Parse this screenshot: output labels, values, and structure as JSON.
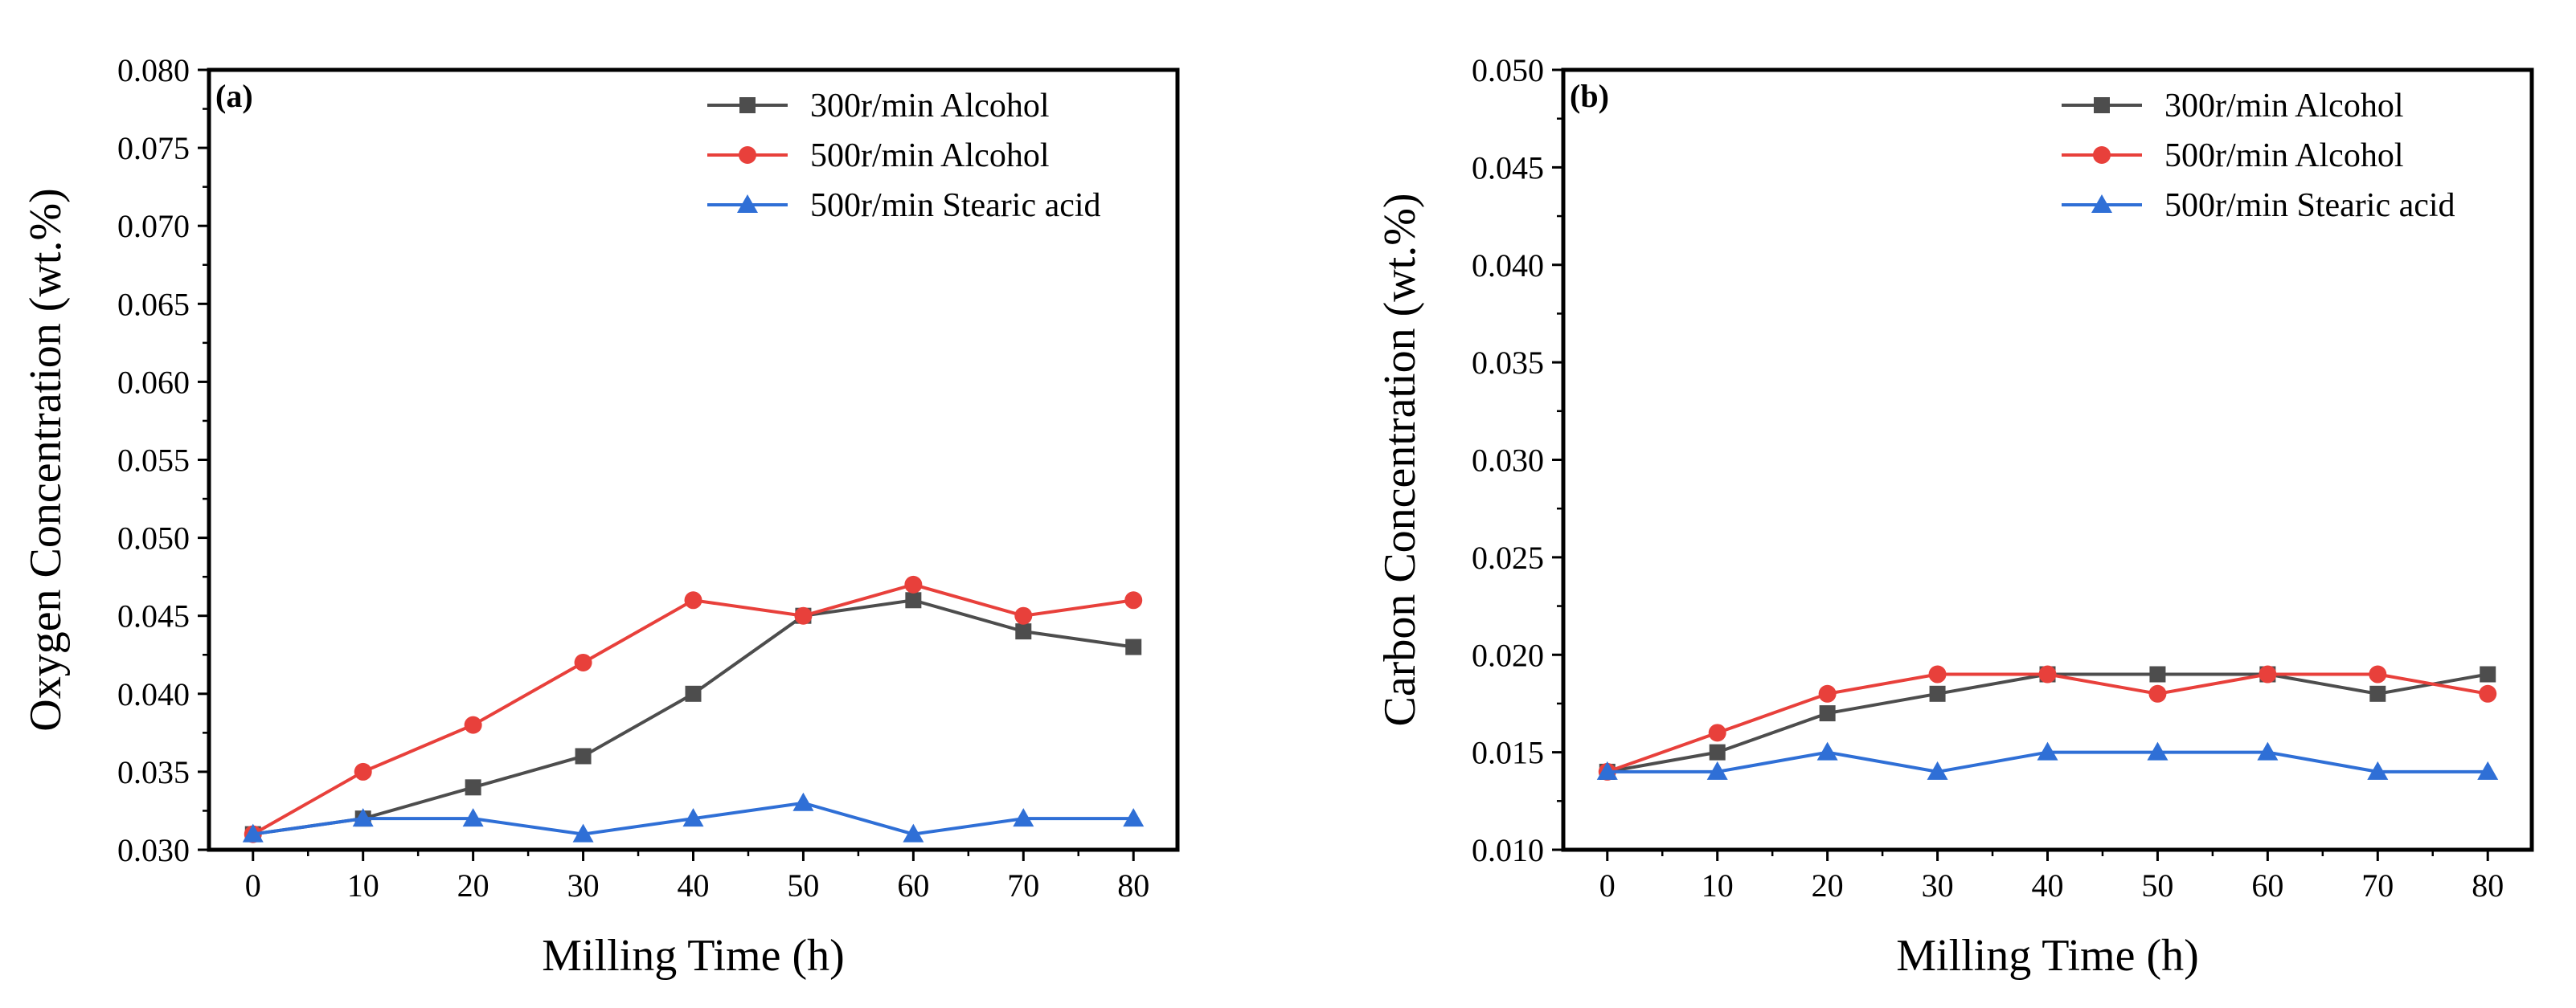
{
  "chart_data": [
    {
      "type": "line",
      "panel_label": "(a)",
      "xlabel": "Milling Time (h)",
      "ylabel": "Oxygen Concentration (wt.%)",
      "x": [
        0,
        10,
        20,
        30,
        40,
        50,
        60,
        70,
        80
      ],
      "xlim": [
        -4,
        84
      ],
      "ylim": [
        0.03,
        0.08
      ],
      "xticks": [
        "0",
        "10",
        "20",
        "30",
        "40",
        "50",
        "60",
        "70",
        "80"
      ],
      "yticks": [
        "0.030",
        "0.035",
        "0.040",
        "0.045",
        "0.050",
        "0.055",
        "0.060",
        "0.065",
        "0.070",
        "0.075",
        "0.080"
      ],
      "legend_position": "top-right",
      "series": [
        {
          "name": "300r/min Alcohol",
          "color": "#4d4d4d",
          "marker": "square",
          "values": [
            0.031,
            0.032,
            0.034,
            0.036,
            0.04,
            0.045,
            0.046,
            0.044,
            0.043
          ]
        },
        {
          "name": "500r/min Alcohol",
          "color": "#e8403b",
          "marker": "circle",
          "values": [
            0.031,
            0.035,
            0.038,
            0.042,
            0.046,
            0.045,
            0.047,
            0.045,
            0.046
          ]
        },
        {
          "name": "500r/min Stearic acid",
          "color": "#2f6fd6",
          "marker": "triangle",
          "values": [
            0.031,
            0.032,
            0.032,
            0.031,
            0.032,
            0.033,
            0.031,
            0.032,
            0.032
          ]
        }
      ]
    },
    {
      "type": "line",
      "panel_label": "(b)",
      "xlabel": "Milling Time (h)",
      "ylabel": "Carbon Concentration (wt.%)",
      "x": [
        0,
        10,
        20,
        30,
        40,
        50,
        60,
        70,
        80
      ],
      "xlim": [
        -4,
        84
      ],
      "ylim": [
        0.01,
        0.05
      ],
      "xticks": [
        "0",
        "10",
        "20",
        "30",
        "40",
        "50",
        "60",
        "70",
        "80"
      ],
      "yticks": [
        "0.010",
        "0.015",
        "0.020",
        "0.025",
        "0.030",
        "0.035",
        "0.040",
        "0.045",
        "0.050"
      ],
      "legend_position": "top-right",
      "series": [
        {
          "name": "300r/min Alcohol",
          "color": "#4d4d4d",
          "marker": "square",
          "values": [
            0.014,
            0.015,
            0.017,
            0.018,
            0.019,
            0.019,
            0.019,
            0.018,
            0.019
          ]
        },
        {
          "name": "500r/min Alcohol",
          "color": "#e8403b",
          "marker": "circle",
          "values": [
            0.014,
            0.016,
            0.018,
            0.019,
            0.019,
            0.018,
            0.019,
            0.019,
            0.018
          ]
        },
        {
          "name": "500r/min Stearic acid",
          "color": "#2f6fd6",
          "marker": "triangle",
          "values": [
            0.014,
            0.014,
            0.015,
            0.014,
            0.015,
            0.015,
            0.015,
            0.014,
            0.014
          ]
        }
      ]
    }
  ]
}
